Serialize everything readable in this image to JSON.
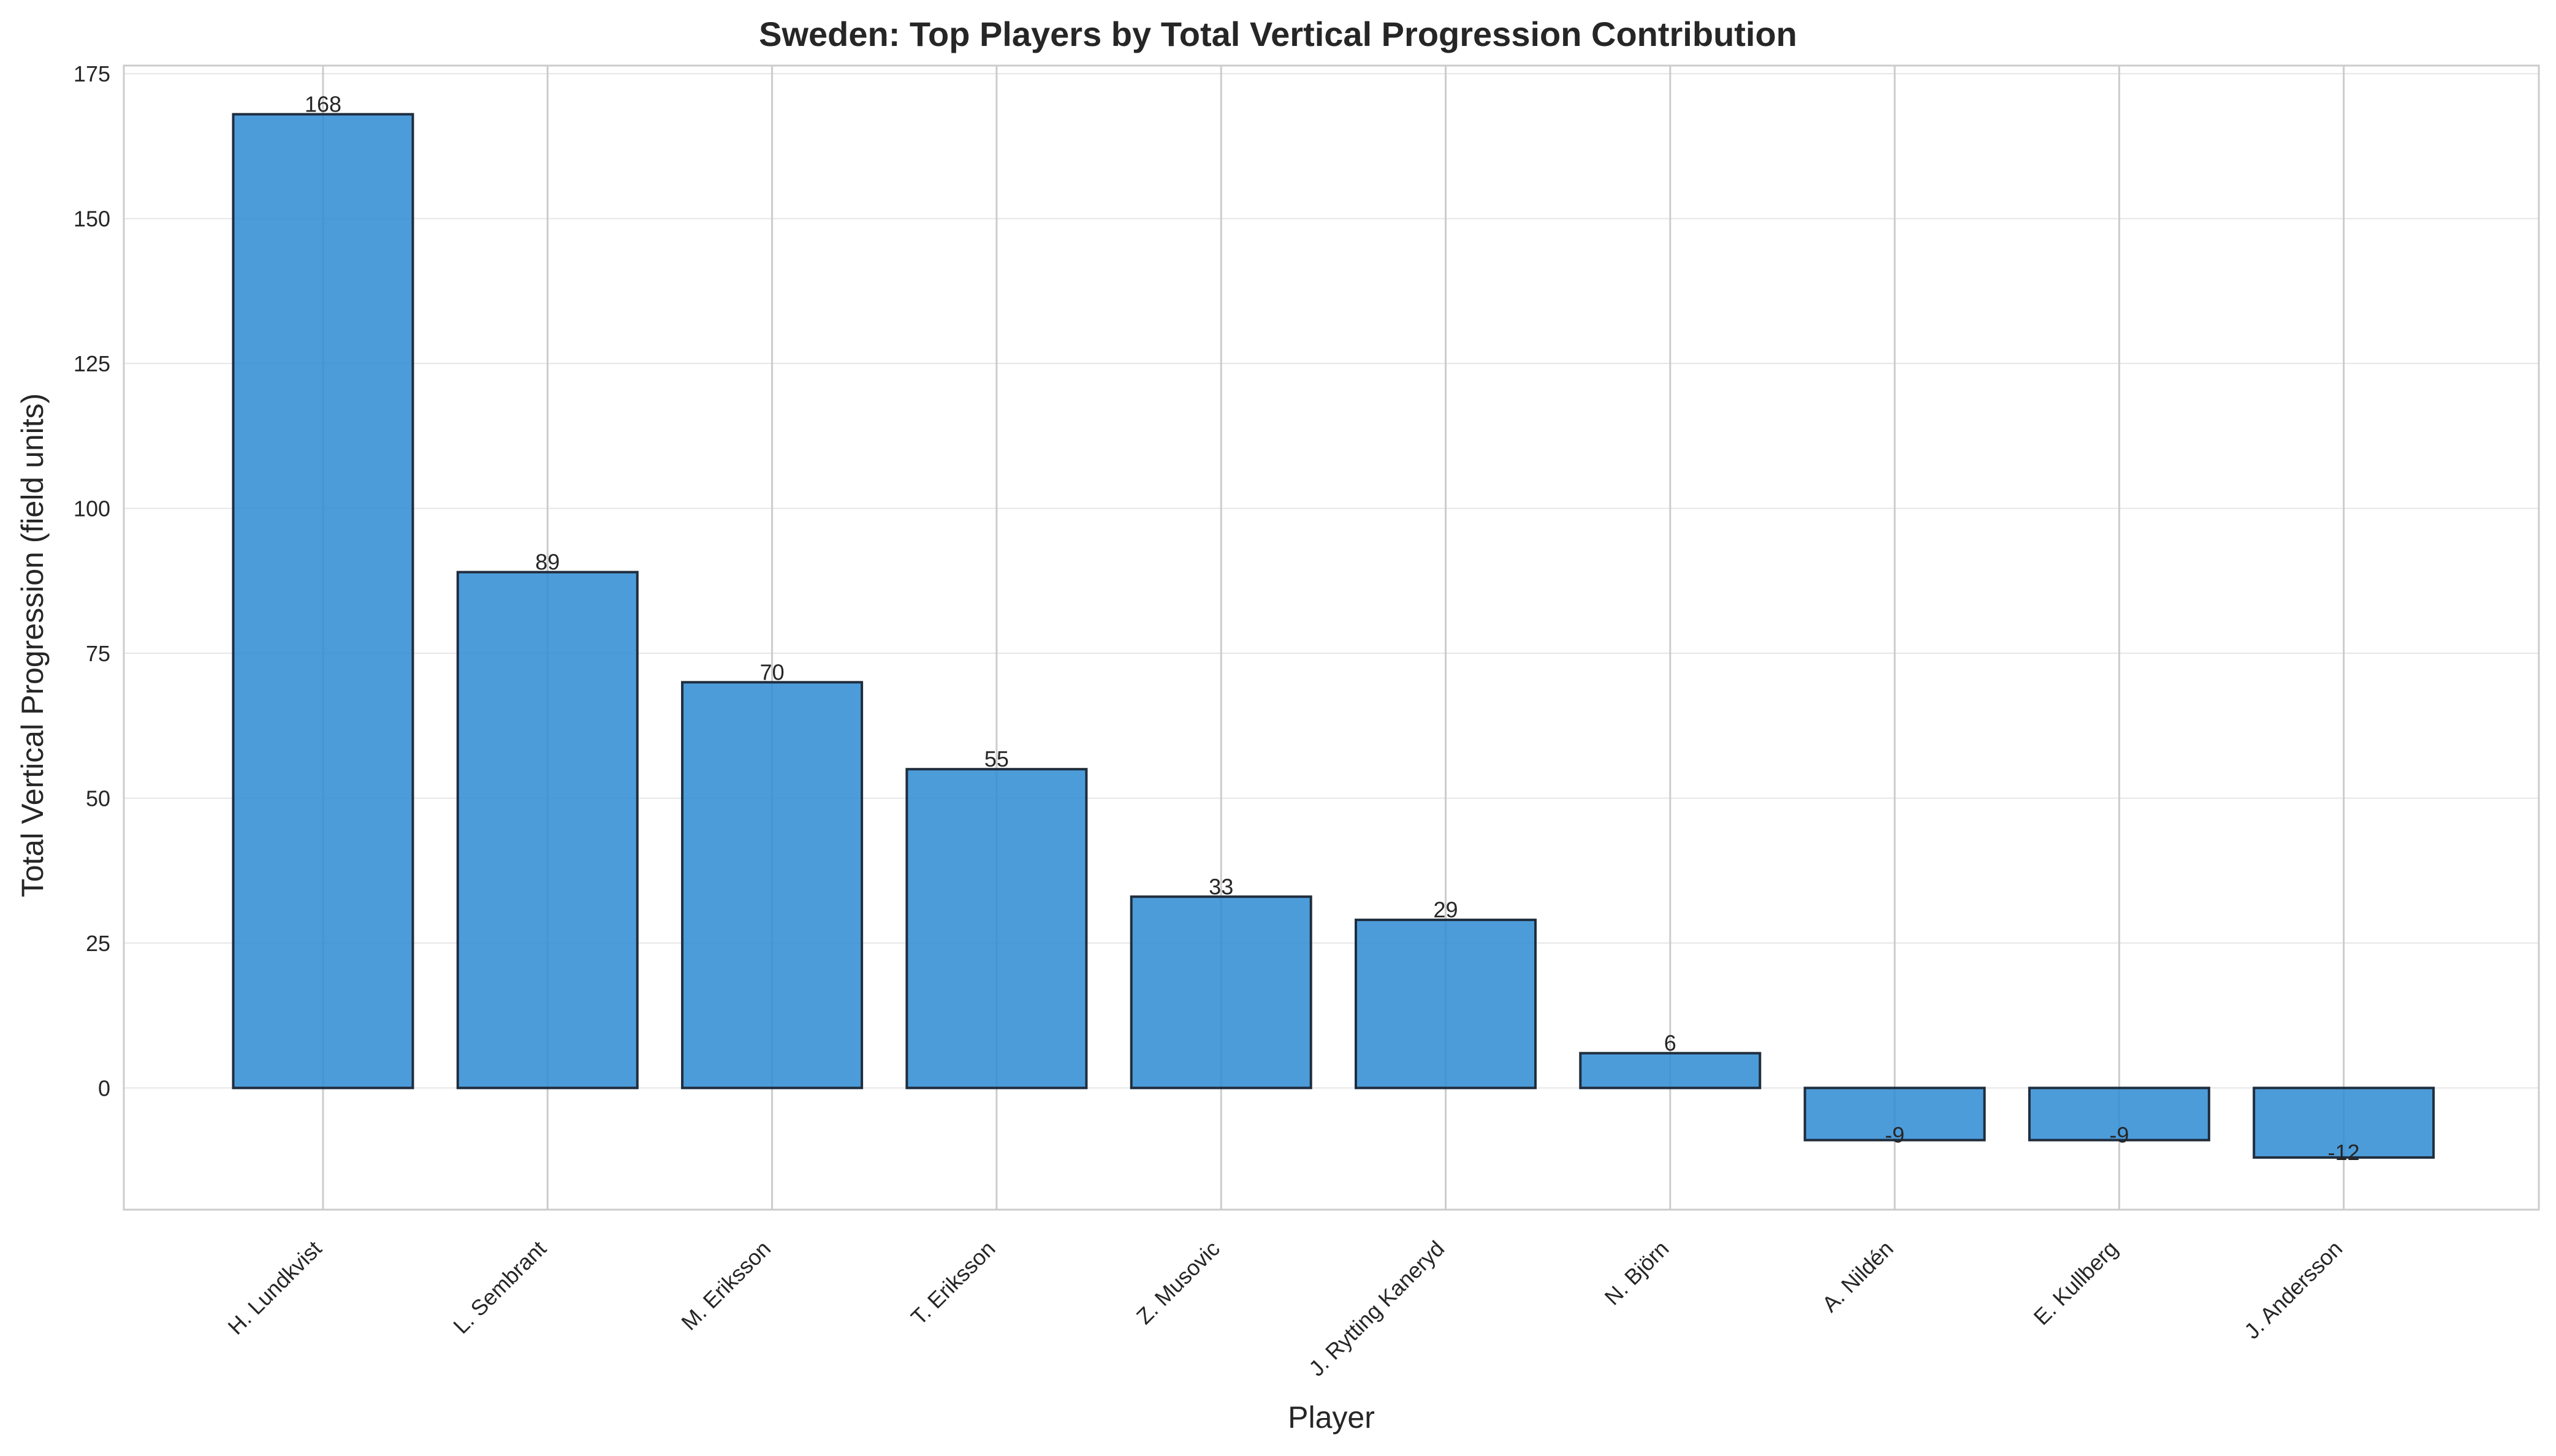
{
  "chart_data": {
    "type": "bar",
    "title": "Sweden: Top Players by Total Vertical Progression Contribution",
    "xlabel": "Player",
    "ylabel": "Total Vertical Progression (field units)",
    "categories": [
      "H. Lundkvist",
      "L. Sembrant",
      "M. Eriksson",
      "T. Eriksson",
      "Z. Musovic",
      "J. Rytting Kaneryd",
      "N. Björn",
      "A. Nildén",
      "E. Kullberg",
      "J. Andersson"
    ],
    "values": [
      168,
      89,
      70,
      55,
      33,
      29,
      6,
      -9,
      -9,
      -12
    ],
    "data_labels": [
      "168",
      "89",
      "70",
      "55",
      "33",
      "29",
      "6",
      "-9",
      "-9",
      "-12"
    ],
    "yticks": [
      0,
      25,
      50,
      75,
      100,
      125,
      150,
      175
    ],
    "ylim": [
      -21,
      176.4
    ],
    "grid": true,
    "bar_color": "#2e8bd4",
    "edge_color": "#1f2d3d"
  }
}
